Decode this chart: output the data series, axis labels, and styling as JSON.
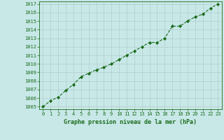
{
  "x": [
    0,
    1,
    2,
    3,
    4,
    5,
    6,
    7,
    8,
    9,
    10,
    11,
    12,
    13,
    14,
    15,
    16,
    17,
    18,
    19,
    20,
    21,
    22,
    23
  ],
  "y": [
    1005.0,
    1005.7,
    1006.1,
    1006.9,
    1007.6,
    1008.5,
    1008.9,
    1009.3,
    1009.6,
    1010.0,
    1010.5,
    1011.0,
    1011.5,
    1012.0,
    1012.5,
    1012.5,
    1013.0,
    1014.4,
    1014.4,
    1015.0,
    1015.5,
    1015.8,
    1016.5,
    1017.0
  ],
  "line_color": "#1a6b1a",
  "marker_color": "#1a6b1a",
  "bg_color": "#c8e8e8",
  "grid_color": "#b0cccc",
  "text_color": "#1a6b1a",
  "xlabel": "Graphe pression niveau de la mer (hPa)",
  "xlim": [
    -0.5,
    23.5
  ],
  "ylim": [
    1004.7,
    1017.3
  ],
  "yticks": [
    1005,
    1006,
    1007,
    1008,
    1009,
    1010,
    1011,
    1012,
    1013,
    1014,
    1015,
    1016,
    1017
  ],
  "xticks": [
    0,
    1,
    2,
    3,
    4,
    5,
    6,
    7,
    8,
    9,
    10,
    11,
    12,
    13,
    14,
    15,
    16,
    17,
    18,
    19,
    20,
    21,
    22,
    23
  ],
  "tick_fontsize": 5.0,
  "label_fontsize": 6.0
}
